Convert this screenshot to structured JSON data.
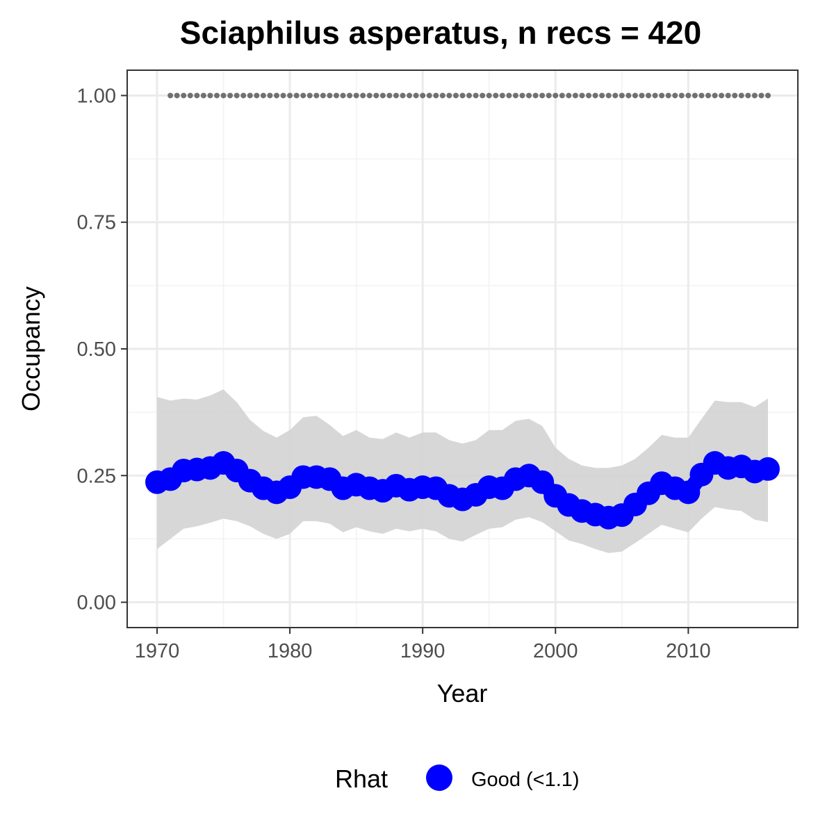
{
  "chart_data": {
    "type": "line",
    "title": "Sciaphilus asperatus, n recs = 420",
    "xlabel": "Year",
    "ylabel": "Occupancy",
    "xlim": [
      1967.75,
      2018.25
    ],
    "ylim": [
      -0.05,
      1.05
    ],
    "x_ticks": [
      1970,
      1980,
      1990,
      2000,
      2010
    ],
    "x_tick_labels": [
      "1970",
      "1980",
      "1990",
      "2000",
      "2010"
    ],
    "y_ticks": [
      0,
      0.25,
      0.5,
      0.75,
      1
    ],
    "y_tick_labels": [
      "0.00",
      "0.25",
      "0.50",
      "0.75",
      "1.00"
    ],
    "grid": true,
    "legend": {
      "title": "Rhat",
      "placement": "bottom",
      "entries": [
        {
          "label": "Good (<1.1)",
          "color": "#0000ff"
        }
      ]
    },
    "colors": {
      "mean": "#0000ff",
      "ribbon": "#d3d3d3",
      "reference": "#707070"
    },
    "years": [
      1970,
      1971,
      1972,
      1973,
      1974,
      1975,
      1976,
      1977,
      1978,
      1979,
      1980,
      1981,
      1982,
      1983,
      1984,
      1985,
      1986,
      1987,
      1988,
      1989,
      1990,
      1991,
      1992,
      1993,
      1994,
      1995,
      1996,
      1997,
      1998,
      1999,
      2000,
      2001,
      2002,
      2003,
      2004,
      2005,
      2006,
      2007,
      2008,
      2009,
      2010,
      2011,
      2012,
      2013,
      2014,
      2015,
      2016
    ],
    "series": [
      {
        "name": "Good (<1.1)",
        "values": [
          0.237,
          0.243,
          0.26,
          0.262,
          0.265,
          0.275,
          0.26,
          0.24,
          0.225,
          0.217,
          0.227,
          0.247,
          0.247,
          0.243,
          0.225,
          0.232,
          0.225,
          0.22,
          0.23,
          0.222,
          0.227,
          0.225,
          0.21,
          0.203,
          0.212,
          0.227,
          0.225,
          0.243,
          0.25,
          0.237,
          0.21,
          0.192,
          0.18,
          0.173,
          0.167,
          0.172,
          0.193,
          0.215,
          0.235,
          0.225,
          0.217,
          0.252,
          0.275,
          0.265,
          0.268,
          0.258,
          0.263
        ],
        "lower": [
          0.105,
          0.125,
          0.145,
          0.15,
          0.157,
          0.165,
          0.16,
          0.15,
          0.135,
          0.125,
          0.135,
          0.16,
          0.16,
          0.155,
          0.138,
          0.148,
          0.14,
          0.135,
          0.145,
          0.14,
          0.145,
          0.14,
          0.125,
          0.12,
          0.133,
          0.145,
          0.148,
          0.163,
          0.168,
          0.158,
          0.14,
          0.122,
          0.115,
          0.105,
          0.097,
          0.1,
          0.117,
          0.135,
          0.153,
          0.145,
          0.138,
          0.165,
          0.188,
          0.183,
          0.18,
          0.163,
          0.158
        ],
        "upper": [
          0.405,
          0.398,
          0.402,
          0.4,
          0.408,
          0.42,
          0.395,
          0.36,
          0.338,
          0.325,
          0.34,
          0.365,
          0.368,
          0.35,
          0.328,
          0.34,
          0.325,
          0.322,
          0.335,
          0.325,
          0.335,
          0.335,
          0.32,
          0.313,
          0.32,
          0.34,
          0.34,
          0.358,
          0.362,
          0.348,
          0.305,
          0.283,
          0.27,
          0.265,
          0.265,
          0.27,
          0.283,
          0.305,
          0.33,
          0.325,
          0.325,
          0.362,
          0.398,
          0.395,
          0.395,
          0.385,
          0.402
        ]
      }
    ],
    "reference": {
      "y": 1.0,
      "x_start": 1971,
      "x_end": 2016,
      "step": 1
    }
  }
}
